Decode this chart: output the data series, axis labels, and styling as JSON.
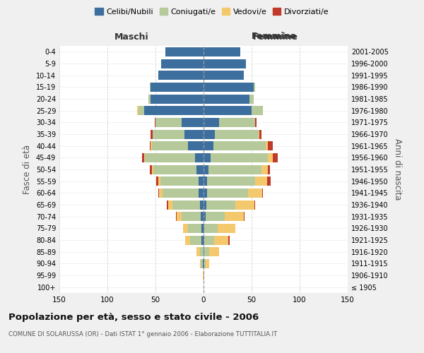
{
  "age_groups": [
    "100+",
    "95-99",
    "90-94",
    "85-89",
    "80-84",
    "75-79",
    "70-74",
    "65-69",
    "60-64",
    "55-59",
    "50-54",
    "45-49",
    "40-44",
    "35-39",
    "30-34",
    "25-29",
    "20-24",
    "15-19",
    "10-14",
    "5-9",
    "0-4"
  ],
  "birth_years": [
    "≤ 1905",
    "1906-1910",
    "1911-1915",
    "1916-1920",
    "1921-1925",
    "1926-1930",
    "1931-1935",
    "1936-1940",
    "1941-1945",
    "1946-1950",
    "1951-1955",
    "1956-1960",
    "1961-1965",
    "1966-1970",
    "1971-1975",
    "1976-1980",
    "1981-1985",
    "1986-1990",
    "1991-1995",
    "1996-2000",
    "2001-2005"
  ],
  "male": {
    "celibi": [
      0,
      0,
      1,
      0,
      2,
      2,
      3,
      4,
      5,
      5,
      7,
      9,
      16,
      20,
      23,
      62,
      55,
      55,
      47,
      44,
      40
    ],
    "coniugati": [
      0,
      0,
      2,
      4,
      12,
      14,
      20,
      28,
      38,
      40,
      45,
      52,
      38,
      33,
      27,
      6,
      2,
      1,
      0,
      0,
      0
    ],
    "vedovi": [
      0,
      1,
      1,
      3,
      5,
      5,
      5,
      5,
      3,
      2,
      2,
      1,
      1,
      0,
      0,
      1,
      0,
      0,
      0,
      0,
      0
    ],
    "divorziati": [
      0,
      0,
      0,
      0,
      0,
      0,
      1,
      1,
      1,
      2,
      2,
      2,
      1,
      2,
      1,
      0,
      0,
      0,
      0,
      0,
      0
    ]
  },
  "female": {
    "nubili": [
      0,
      0,
      1,
      1,
      1,
      1,
      2,
      3,
      4,
      4,
      5,
      7,
      10,
      12,
      16,
      50,
      48,
      52,
      42,
      44,
      38
    ],
    "coniugate": [
      0,
      0,
      1,
      5,
      10,
      14,
      20,
      30,
      42,
      50,
      55,
      60,
      55,
      45,
      38,
      12,
      4,
      2,
      0,
      0,
      0
    ],
    "vedove": [
      0,
      1,
      4,
      10,
      15,
      18,
      20,
      20,
      15,
      12,
      7,
      5,
      2,
      1,
      0,
      0,
      0,
      0,
      0,
      0,
      0
    ],
    "divorziate": [
      0,
      0,
      0,
      0,
      1,
      0,
      1,
      1,
      1,
      4,
      2,
      5,
      5,
      2,
      1,
      0,
      0,
      0,
      0,
      0,
      0
    ]
  },
  "colors": {
    "celibi": "#3d6f9e",
    "coniugati": "#b5c99a",
    "vedovi": "#f4c96e",
    "divorziati": "#c0392b"
  },
  "title": "Popolazione per età, sesso e stato civile - 2006",
  "subtitle": "COMUNE DI SOLARUSSA (OR) - Dati ISTAT 1° gennaio 2006 - Elaborazione TUTTITALIA.IT",
  "xlabel_left": "Maschi",
  "xlabel_right": "Femmine",
  "ylabel_left": "Fasce di età",
  "ylabel_right": "Anni di nascita",
  "xlim": 150,
  "legend_labels": [
    "Celibi/Nubili",
    "Coniugati/e",
    "Vedovi/e",
    "Divorziati/e"
  ],
  "background_color": "#f0f0f0",
  "plot_bg": "#ffffff"
}
